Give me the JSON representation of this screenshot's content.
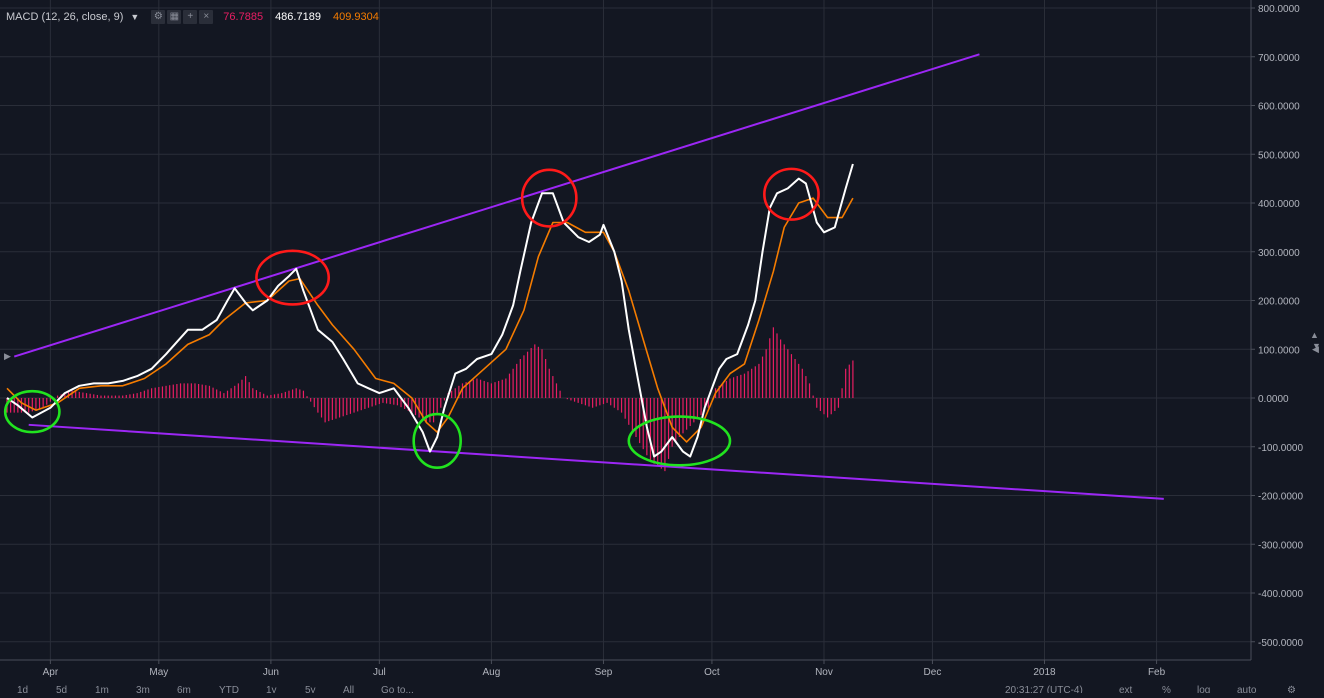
{
  "legend": {
    "title": "MACD (12, 26, close, 9)",
    "histogram_value": "76.7885",
    "macd_value": "486.7189",
    "signal_value": "409.9304",
    "buttons": [
      "settings-icon",
      "format-icon",
      "add-icon",
      "close-icon"
    ]
  },
  "colors": {
    "background": "#131722",
    "grid": "#2a2e39",
    "macd": "#ffffff",
    "signal": "#f57c00",
    "histogram": "#e91e63",
    "trendline": "#9c27f5",
    "peak_marker": "#ff1a1a",
    "trough_marker": "#21e31f",
    "axis_text": "#b2b5be"
  },
  "time_axis": {
    "labels": [
      "Apr",
      "May",
      "Jun",
      "Jul",
      "Aug",
      "Sep",
      "Oct",
      "Nov",
      "Dec",
      "2018",
      "Feb"
    ]
  },
  "toolbar": {
    "ranges": [
      "1d",
      "5d",
      "1m",
      "3m",
      "6m",
      "YTD",
      "1y",
      "5y",
      "All"
    ],
    "goto": "Go to...",
    "clock": "20:31:27 (UTC-4)",
    "options": [
      "ext",
      "%",
      "log",
      "auto"
    ]
  },
  "chart_data": {
    "type": "line",
    "title": "MACD (12, 26, close, 9)",
    "xlabel": "",
    "ylabel": "",
    "x_unit": "day index from Mar 20 (2017)",
    "x_ticks": [
      {
        "label": "Apr",
        "x": 12
      },
      {
        "label": "May",
        "x": 42
      },
      {
        "label": "Jun",
        "x": 73
      },
      {
        "label": "Jul",
        "x": 103
      },
      {
        "label": "Aug",
        "x": 134
      },
      {
        "label": "Sep",
        "x": 165
      },
      {
        "label": "Oct",
        "x": 195
      },
      {
        "label": "Nov",
        "x": 226
      },
      {
        "label": "Dec",
        "x": 256
      },
      {
        "label": "2018",
        "x": 287
      },
      {
        "label": "Feb",
        "x": 318
      }
    ],
    "xlim": [
      0,
      352
    ],
    "ylim": [
      -520,
      810
    ],
    "y_ticks": [
      800,
      700,
      600,
      500,
      400,
      300,
      200,
      100,
      0,
      -100,
      -200,
      -300,
      -400,
      -500
    ],
    "y_tick_labels": [
      "800.0000",
      "700.0000",
      "600.0000",
      "500.0000",
      "400.0000",
      "300.0000",
      "200.0000",
      "100.0000",
      "0.0000",
      "-100.0000",
      "-200.0000",
      "-300.0000",
      "-400.0000",
      "-500.0000"
    ],
    "grid": true,
    "series": [
      {
        "name": "MACD",
        "color": "#ffffff",
        "points": [
          [
            0,
            0
          ],
          [
            3,
            -15
          ],
          [
            7,
            -40
          ],
          [
            12,
            -20
          ],
          [
            16,
            10
          ],
          [
            20,
            25
          ],
          [
            24,
            30
          ],
          [
            28,
            30
          ],
          [
            32,
            35
          ],
          [
            36,
            45
          ],
          [
            40,
            60
          ],
          [
            44,
            90
          ],
          [
            47,
            115
          ],
          [
            50,
            140
          ],
          [
            54,
            140
          ],
          [
            58,
            160
          ],
          [
            61,
            200
          ],
          [
            63,
            225
          ],
          [
            66,
            195
          ],
          [
            68,
            180
          ],
          [
            72,
            200
          ],
          [
            75,
            230
          ],
          [
            78,
            250
          ],
          [
            80,
            265
          ],
          [
            82,
            220
          ],
          [
            84,
            180
          ],
          [
            86,
            140
          ],
          [
            90,
            115
          ],
          [
            93,
            80
          ],
          [
            97,
            30
          ],
          [
            100,
            20
          ],
          [
            103,
            10
          ],
          [
            107,
            20
          ],
          [
            111,
            -20
          ],
          [
            115,
            -70
          ],
          [
            117,
            -110
          ],
          [
            119,
            -80
          ],
          [
            121,
            -20
          ],
          [
            124,
            50
          ],
          [
            127,
            60
          ],
          [
            130,
            80
          ],
          [
            134,
            90
          ],
          [
            137,
            130
          ],
          [
            140,
            190
          ],
          [
            142,
            260
          ],
          [
            145,
            360
          ],
          [
            148,
            420
          ],
          [
            151,
            420
          ],
          [
            154,
            360
          ],
          [
            158,
            330
          ],
          [
            161,
            320
          ],
          [
            164,
            335
          ],
          [
            165,
            355
          ],
          [
            168,
            300
          ],
          [
            170,
            240
          ],
          [
            172,
            140
          ],
          [
            174,
            60
          ],
          [
            177,
            -60
          ],
          [
            179,
            -120
          ],
          [
            181,
            -110
          ],
          [
            184,
            -80
          ],
          [
            187,
            -110
          ],
          [
            189,
            -120
          ],
          [
            191,
            -80
          ],
          [
            193,
            -20
          ],
          [
            195,
            20
          ],
          [
            197,
            60
          ],
          [
            199,
            80
          ],
          [
            202,
            90
          ],
          [
            205,
            150
          ],
          [
            207,
            200
          ],
          [
            209,
            300
          ],
          [
            211,
            390
          ],
          [
            213,
            420
          ],
          [
            216,
            430
          ],
          [
            219,
            450
          ],
          [
            221,
            440
          ],
          [
            224,
            360
          ],
          [
            226,
            340
          ],
          [
            229,
            350
          ],
          [
            232,
            430
          ],
          [
            234,
            480
          ]
        ]
      },
      {
        "name": "Signal",
        "color": "#f57c00",
        "points": [
          [
            0,
            20
          ],
          [
            4,
            -10
          ],
          [
            8,
            -25
          ],
          [
            14,
            -10
          ],
          [
            20,
            20
          ],
          [
            26,
            25
          ],
          [
            32,
            25
          ],
          [
            38,
            40
          ],
          [
            44,
            70
          ],
          [
            50,
            110
          ],
          [
            56,
            130
          ],
          [
            60,
            160
          ],
          [
            66,
            195
          ],
          [
            72,
            200
          ],
          [
            78,
            240
          ],
          [
            81,
            245
          ],
          [
            86,
            190
          ],
          [
            90,
            150
          ],
          [
            96,
            100
          ],
          [
            102,
            40
          ],
          [
            107,
            30
          ],
          [
            112,
            0
          ],
          [
            116,
            -50
          ],
          [
            119,
            -70
          ],
          [
            122,
            -40
          ],
          [
            126,
            20
          ],
          [
            132,
            60
          ],
          [
            138,
            100
          ],
          [
            143,
            180
          ],
          [
            147,
            290
          ],
          [
            151,
            360
          ],
          [
            155,
            360
          ],
          [
            160,
            340
          ],
          [
            165,
            340
          ],
          [
            168,
            300
          ],
          [
            172,
            220
          ],
          [
            176,
            120
          ],
          [
            180,
            20
          ],
          [
            184,
            -60
          ],
          [
            188,
            -90
          ],
          [
            192,
            -60
          ],
          [
            196,
            10
          ],
          [
            200,
            50
          ],
          [
            204,
            70
          ],
          [
            208,
            160
          ],
          [
            212,
            260
          ],
          [
            215,
            350
          ],
          [
            219,
            400
          ],
          [
            223,
            410
          ],
          [
            227,
            370
          ],
          [
            231,
            370
          ],
          [
            234,
            410
          ]
        ]
      },
      {
        "name": "Histogram",
        "color": "#e91e63",
        "points": [
          [
            0,
            -30
          ],
          [
            6,
            -30
          ],
          [
            10,
            -20
          ],
          [
            14,
            5
          ],
          [
            18,
            15
          ],
          [
            22,
            10
          ],
          [
            26,
            5
          ],
          [
            32,
            5
          ],
          [
            36,
            10
          ],
          [
            40,
            20
          ],
          [
            44,
            25
          ],
          [
            48,
            30
          ],
          [
            52,
            30
          ],
          [
            56,
            25
          ],
          [
            60,
            10
          ],
          [
            64,
            30
          ],
          [
            66,
            45
          ],
          [
            68,
            20
          ],
          [
            72,
            5
          ],
          [
            76,
            10
          ],
          [
            80,
            20
          ],
          [
            82,
            15
          ],
          [
            86,
            -30
          ],
          [
            88,
            -50
          ],
          [
            92,
            -40
          ],
          [
            96,
            -30
          ],
          [
            100,
            -20
          ],
          [
            104,
            -10
          ],
          [
            108,
            -15
          ],
          [
            112,
            -30
          ],
          [
            116,
            -50
          ],
          [
            118,
            -50
          ],
          [
            120,
            -20
          ],
          [
            122,
            10
          ],
          [
            126,
            30
          ],
          [
            130,
            40
          ],
          [
            134,
            30
          ],
          [
            138,
            40
          ],
          [
            142,
            80
          ],
          [
            146,
            110
          ],
          [
            148,
            100
          ],
          [
            150,
            60
          ],
          [
            154,
            0
          ],
          [
            158,
            -10
          ],
          [
            162,
            -20
          ],
          [
            166,
            -10
          ],
          [
            170,
            -30
          ],
          [
            174,
            -80
          ],
          [
            178,
            -130
          ],
          [
            182,
            -150
          ],
          [
            184,
            -100
          ],
          [
            186,
            -80
          ],
          [
            190,
            -50
          ],
          [
            194,
            -20
          ],
          [
            196,
            20
          ],
          [
            200,
            40
          ],
          [
            204,
            50
          ],
          [
            208,
            70
          ],
          [
            210,
            100
          ],
          [
            212,
            145
          ],
          [
            214,
            120
          ],
          [
            216,
            100
          ],
          [
            220,
            60
          ],
          [
            222,
            30
          ],
          [
            224,
            -20
          ],
          [
            227,
            -40
          ],
          [
            230,
            -20
          ],
          [
            232,
            60
          ],
          [
            234,
            77
          ]
        ]
      }
    ],
    "trendlines": [
      {
        "from": [
          2,
          85
        ],
        "to": [
          269,
          705
        ]
      },
      {
        "from": [
          6,
          -55
        ],
        "to": [
          320,
          -207
        ]
      }
    ],
    "annotations": [
      {
        "shape": "ellipse",
        "color": "#ff1a1a",
        "center": [
          79,
          247
        ],
        "rx_days": 10,
        "ry_units": 55
      },
      {
        "shape": "ellipse",
        "color": "#ff1a1a",
        "center": [
          150,
          410
        ],
        "rx_days": 7.5,
        "ry_units": 58
      },
      {
        "shape": "ellipse",
        "color": "#ff1a1a",
        "center": [
          217,
          418
        ],
        "rx_days": 7.5,
        "ry_units": 52
      },
      {
        "shape": "ellipse",
        "color": "#21e31f",
        "center": [
          7,
          -28
        ],
        "rx_days": 7.5,
        "ry_units": 42
      },
      {
        "shape": "ellipse",
        "color": "#21e31f",
        "center": [
          119,
          -88
        ],
        "rx_days": 6.5,
        "ry_units": 55
      },
      {
        "shape": "ellipse",
        "color": "#21e31f",
        "center": [
          186,
          -88
        ],
        "rx_days": 14,
        "ry_units": 50
      }
    ],
    "current_values": {
      "histogram": 76.7885,
      "macd": 486.7189,
      "signal": 409.9304
    }
  }
}
